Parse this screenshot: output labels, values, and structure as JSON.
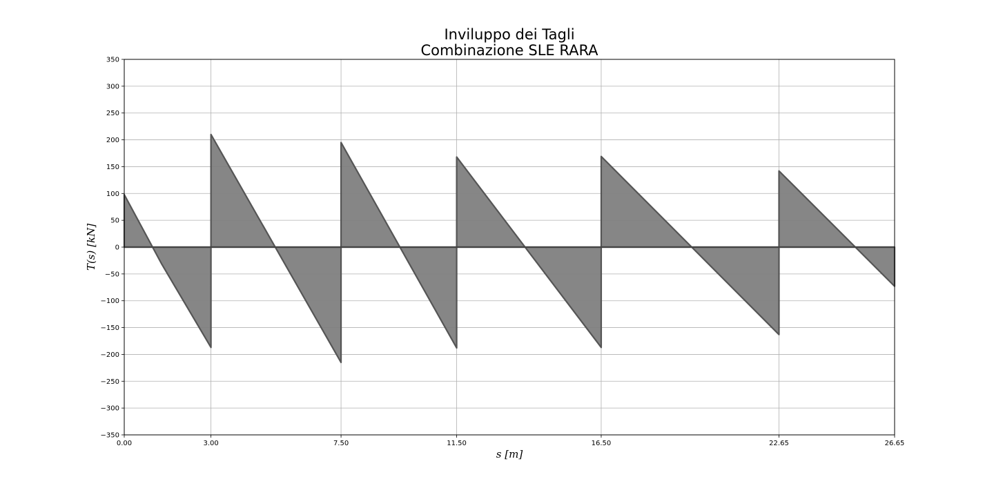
{
  "chart_data": {
    "type": "area",
    "title_lines": [
      "Inviluppo dei Tagli",
      "Combinazione SLE RARA"
    ],
    "xlabel": "$s\\,[m]$",
    "xlabel_display": "s [m]",
    "ylabel": "$T(s)\\,[kN]$",
    "ylabel_display": "T(s) [kN]",
    "xlim": [
      0,
      26.65
    ],
    "ylim": [
      -350,
      350
    ],
    "x_ticks": [
      0,
      3,
      7.5,
      11.5,
      16.5,
      22.65,
      26.65
    ],
    "x_tick_labels": [
      "0.00",
      "3.00",
      "7.50",
      "11.50",
      "16.50",
      "22.65",
      "26.65"
    ],
    "y_ticks": [
      -350,
      -300,
      -250,
      -200,
      -150,
      -100,
      -50,
      0,
      50,
      100,
      150,
      200,
      250,
      300,
      350
    ],
    "y_tick_labels": [
      "−350",
      "−300",
      "−250",
      "−200",
      "−150",
      "−100",
      "−50",
      "0",
      "50",
      "100",
      "150",
      "200",
      "250",
      "300",
      "350"
    ],
    "grid": true,
    "colors": {
      "fill": "#808080",
      "edge": "#555555",
      "grid": "#b0b0b0"
    },
    "series": [
      {
        "x": [
          0,
          0,
          1.3,
          3.0,
          3.0,
          3.0,
          7.5,
          7.5,
          7.5,
          11.5,
          11.5,
          11.5,
          16.5,
          16.5,
          16.5,
          22.65,
          22.65,
          22.65,
          26.65,
          26.65
        ],
        "y": [
          0,
          98,
          -32,
          -187,
          0,
          210,
          -215,
          0,
          195,
          -188,
          0,
          168,
          -187,
          0,
          169,
          -163,
          0,
          142,
          -73,
          0
        ]
      }
    ]
  }
}
